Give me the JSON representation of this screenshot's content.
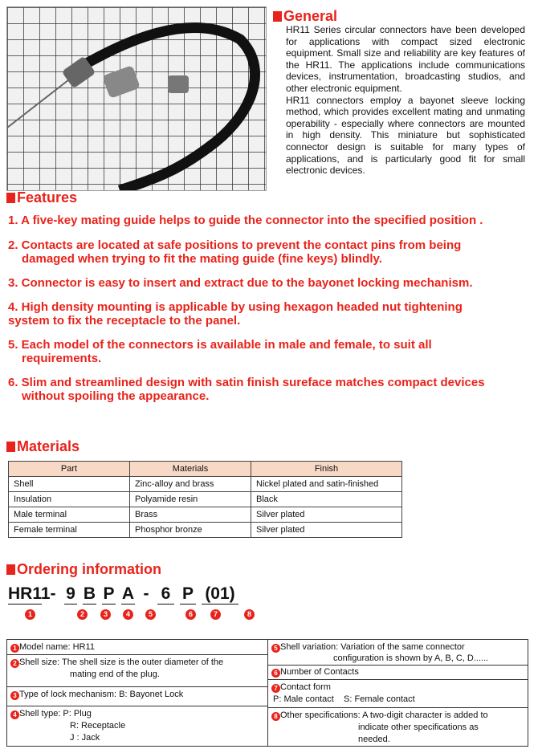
{
  "general": {
    "title": "General",
    "paragraphs": [
      "HR11 Series circular connectors have been developed for applications with compact sized electronic equipment. Small size and reliability are key features of the HR11. The applications include communications devices, instrumentation, broadcasting studios, and other electronic equipment.",
      "HR11 connectors employ a bayonet sleeve locking method, which provides excellent mating and unmating operability - especially where connectors are mounted in high density. This miniature but sophisticated connector design is suitable for many types of applications, and is particularly good fit for small electronic devices."
    ]
  },
  "features": {
    "title": "Features",
    "items": [
      {
        "first": "1. A five-key mating guide helps to guide the connector into the specified position .",
        "cont": ""
      },
      {
        "first": "2. Contacts are located at safe positions to prevent the contact pins from being",
        "cont": "damaged when trying to fit the mating guide (fine keys) blindly."
      },
      {
        "first": "3. Connector is easy to insert and extract due to the bayonet locking mechanism.",
        "cont": ""
      },
      {
        "first": "4. High density mounting is applicable by using hexagon headed nut tightening",
        "cont": "system to fix the receptacle to the panel."
      },
      {
        "first": "5. Each model of the connectors is available in male and female, to suit all",
        "cont": "requirements."
      },
      {
        "first": "6. Slim and streamlined design with satin finish sureface matches compact devices",
        "cont": "without spoiling the appearance."
      }
    ]
  },
  "materials": {
    "title": "Materials",
    "headers": [
      "Part",
      "Materials",
      "Finish"
    ],
    "rows": [
      [
        "Shell",
        "Zinc-alloy and brass",
        "Nickel plated and satin-finished"
      ],
      [
        "Insulation",
        "Polyamide resin",
        "Black"
      ],
      [
        "Male terminal",
        "Brass",
        "Silver plated"
      ],
      [
        "Female terminal",
        "Phosphor bronze",
        "Silver plated"
      ]
    ]
  },
  "ordering": {
    "title": "Ordering information",
    "code": [
      "HR11",
      "-",
      "9",
      "B",
      "P",
      "A",
      "-",
      "6",
      "P",
      "(01)"
    ],
    "numbers": [
      "1",
      "2",
      "3",
      "4",
      "5",
      "6",
      "7",
      "8"
    ],
    "left": [
      {
        "n": "1",
        "l1": "Model name: HR11"
      },
      {
        "n": "2",
        "l1": "Shell size: The shell size is the outer diameter of the",
        "l2": "mating end of the plug."
      },
      {
        "n": "3",
        "l1": "Type of lock mechanism: B: Bayonet Lock"
      },
      {
        "n": "4",
        "l1": "Shell type: P: Plug",
        "l2": "R: Receptacle",
        "l3": "J : Jack"
      }
    ],
    "right": [
      {
        "n": "5",
        "l1": "Shell variation: Variation of the same connector",
        "l2": "configuration is shown by A, B, C, D......"
      },
      {
        "n": "6",
        "l1": "Number of Contacts"
      },
      {
        "n": "7",
        "l1": "Contact form",
        "l2": "P: Male contact    S: Female contact"
      },
      {
        "n": "8",
        "l1": "Other specifications: A two-digit character is added to",
        "l2": "indicate other specifications as",
        "l3": "needed."
      }
    ]
  },
  "accent_color": "#e8231b"
}
